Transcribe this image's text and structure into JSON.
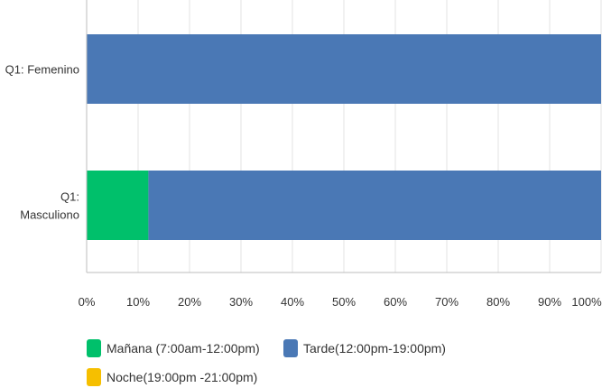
{
  "chart_data": {
    "type": "bar",
    "orientation": "horizontal",
    "stacked": true,
    "percent": true,
    "categories": [
      "Q1: Femenino",
      "Q1: Masculiono"
    ],
    "series": [
      {
        "name": "Mañana (7:00am-12:00pm)",
        "color": "#00c06b",
        "values": [
          0,
          12
        ]
      },
      {
        "name": "Tarde(12:00pm-19:00pm)",
        "color": "#4a78b5",
        "values": [
          100,
          88
        ]
      },
      {
        "name": "Noche(19:00pm -21:00pm)",
        "color": "#f6bf00",
        "values": [
          0,
          0
        ]
      }
    ],
    "xlim": [
      0,
      100
    ],
    "xticks": [
      "0%",
      "10%",
      "20%",
      "30%",
      "40%",
      "50%",
      "60%",
      "70%",
      "80%",
      "90%",
      "100%"
    ],
    "grid": true,
    "legend_position": "bottom"
  }
}
